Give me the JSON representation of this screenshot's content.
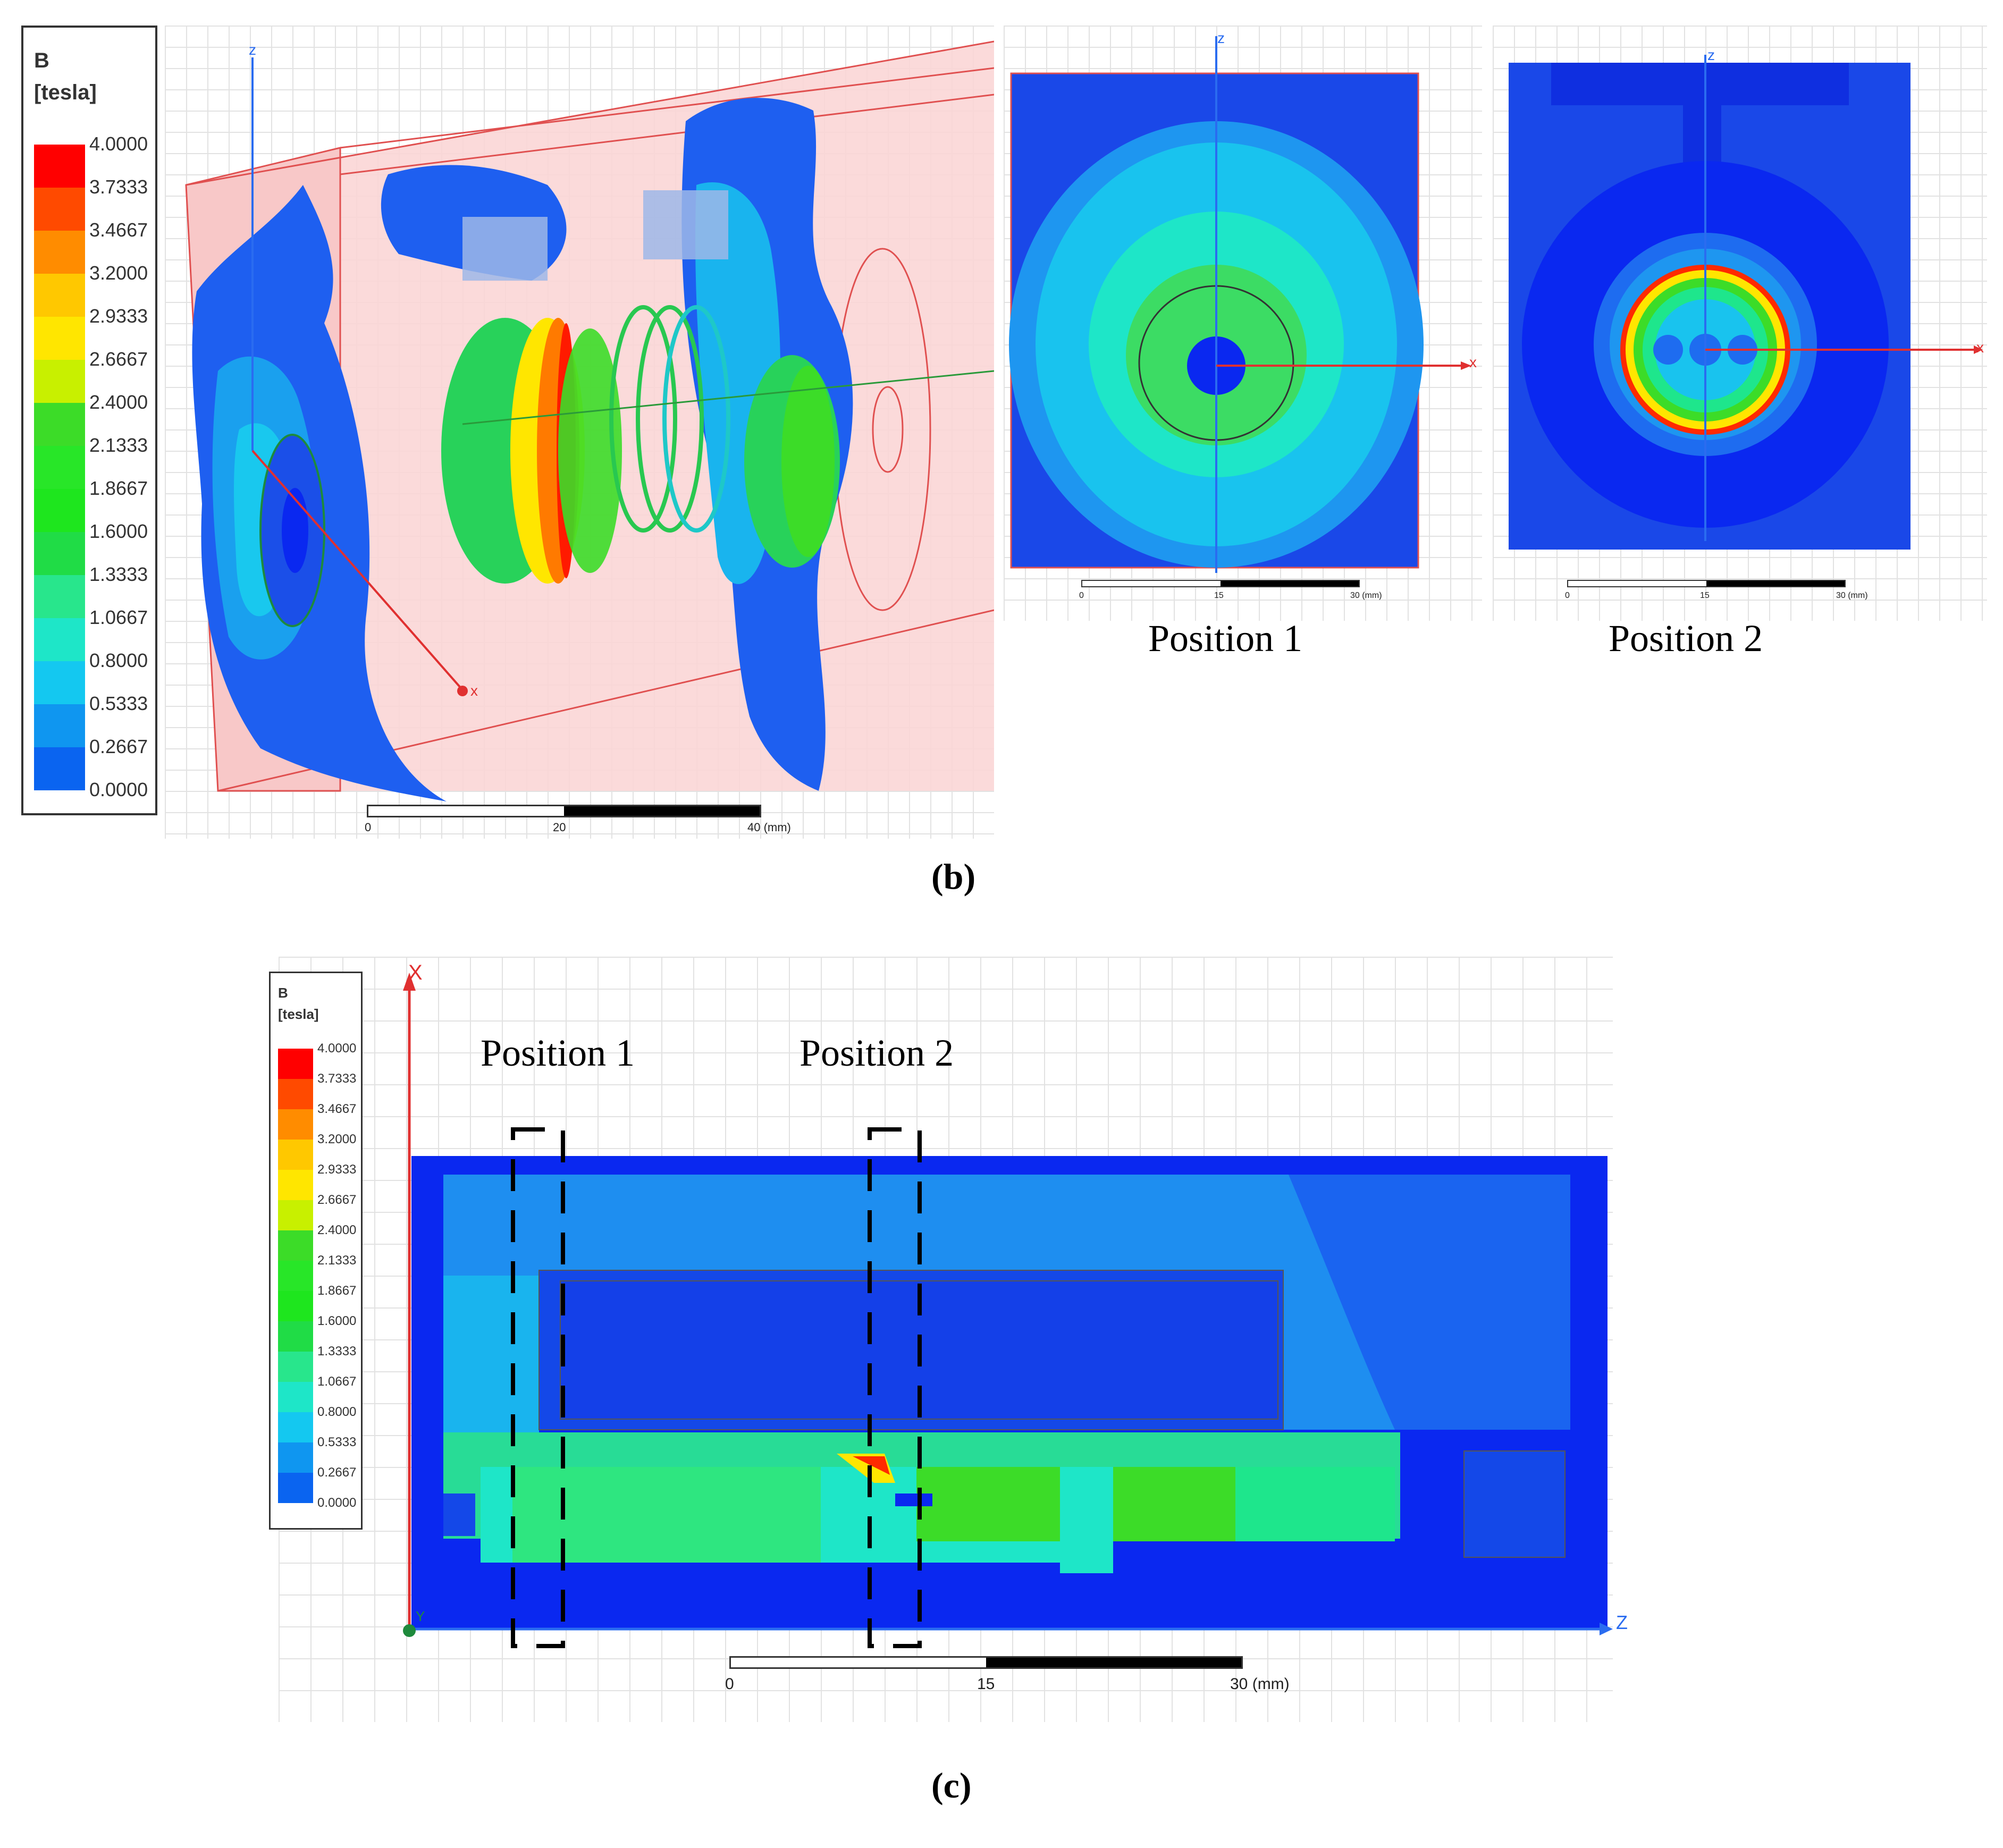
{
  "legend_b": {
    "title": "B",
    "unit": "[tesla]",
    "levels": [
      "4.0000",
      "3.7333",
      "3.4667",
      "3.2000",
      "2.9333",
      "2.6667",
      "2.4000",
      "2.1333",
      "1.8667",
      "1.6000",
      "1.3333",
      "1.0667",
      "0.8000",
      "0.5333",
      "0.2667",
      "0.0000"
    ]
  },
  "legend_c": {
    "title": "B",
    "unit": "[tesla]",
    "levels": [
      "4.0000",
      "3.7333",
      "3.4667",
      "3.2000",
      "2.9333",
      "2.6667",
      "2.4000",
      "2.1333",
      "1.8667",
      "1.6000",
      "1.3333",
      "1.0667",
      "0.8000",
      "0.5333",
      "0.2667",
      "0.0000"
    ]
  },
  "colors": [
    "#ff0000",
    "#ff4a00",
    "#ff8c00",
    "#ffc800",
    "#ffe600",
    "#c8f000",
    "#3cdc28",
    "#28e628",
    "#1ee61e",
    "#20dc46",
    "#28e68c",
    "#1ee6c8",
    "#14c8f0",
    "#0f96f0",
    "#0a64f0",
    "#0a28f0"
  ],
  "panel_b": {
    "view3d": {
      "axis_z": "z",
      "axis_x": "x",
      "scale": [
        "0",
        "20",
        "40 (mm)"
      ]
    },
    "pos1": {
      "axis_z": "z",
      "axis_x": "x",
      "scale": [
        "0",
        "15",
        "30 (mm)"
      ],
      "label": "Position 1"
    },
    "pos2": {
      "axis_z": "z",
      "axis_x": "x",
      "scale": [
        "0",
        "15",
        "30 (mm)"
      ],
      "label": "Position 2"
    },
    "caption": "(b)"
  },
  "panel_c": {
    "axis_x": "X",
    "axis_z": "Z",
    "axis_y": "Y",
    "pos1_label": "Position 1",
    "pos2_label": "Position 2",
    "scale": [
      "0",
      "15",
      "30 (mm)"
    ],
    "caption": "(c)"
  }
}
